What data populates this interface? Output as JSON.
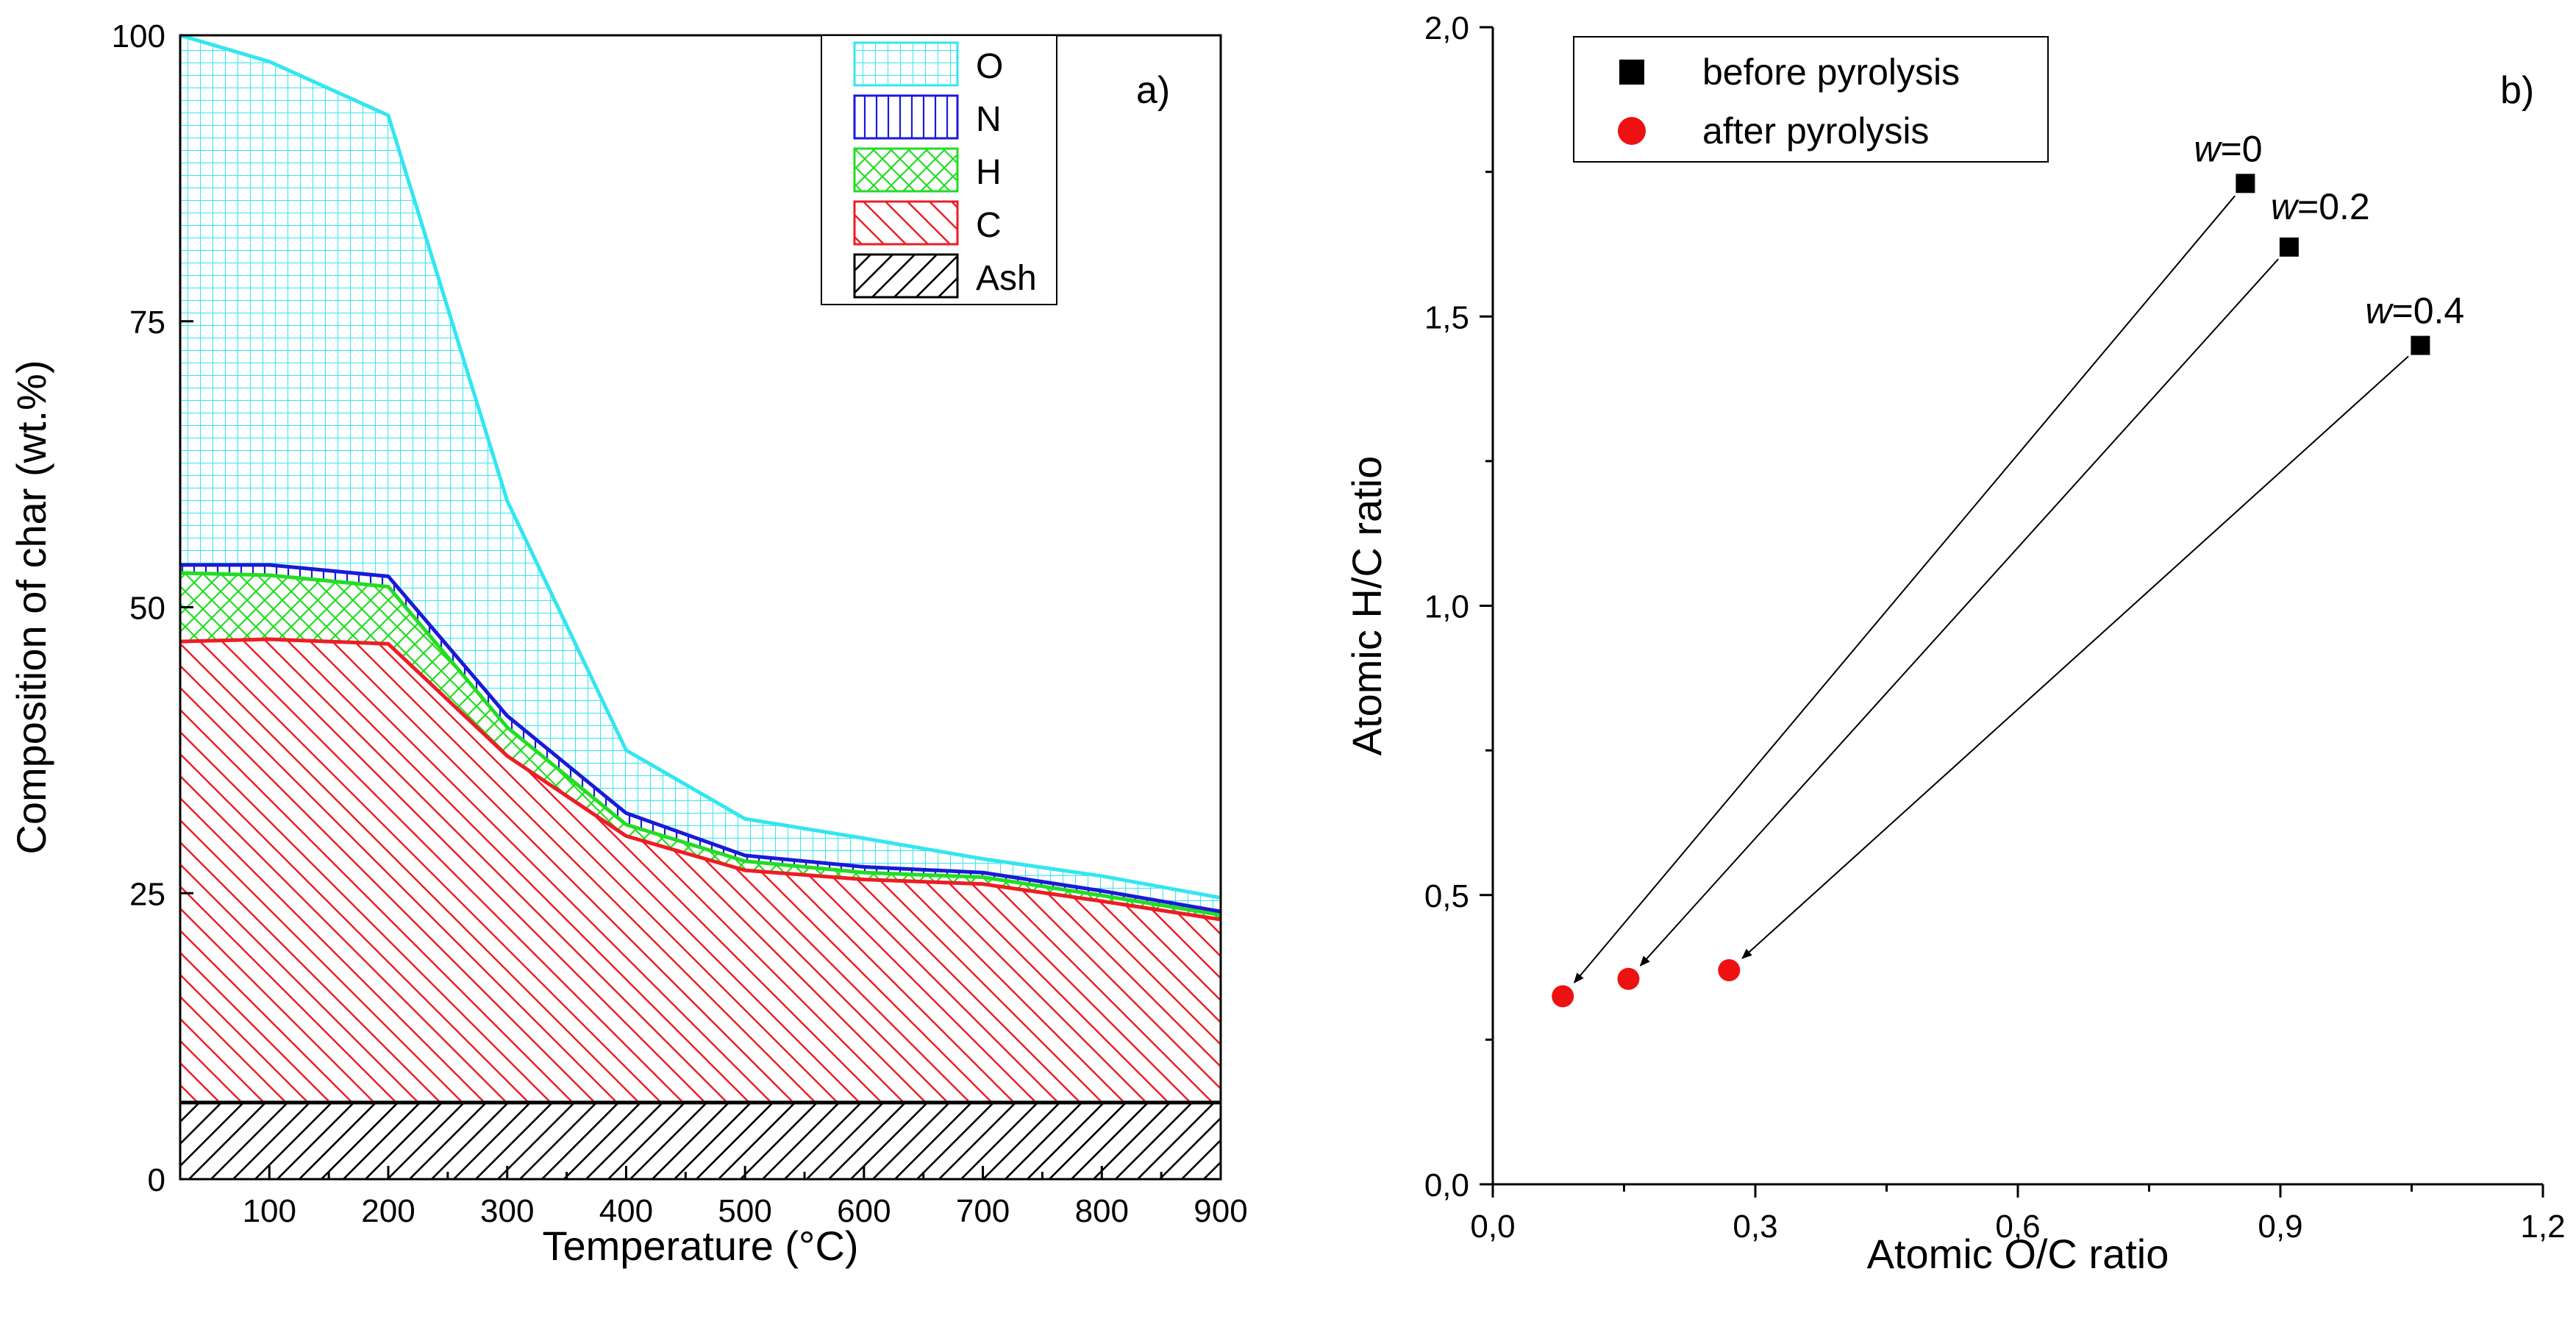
{
  "chart_data": [
    {
      "id": "a",
      "type": "area",
      "panel_label": "a)",
      "xlabel": "Temperature (°C)",
      "ylabel": "Composition of char (wt.%)",
      "xlim": [
        25,
        900
      ],
      "ylim": [
        0,
        100
      ],
      "xticks": [
        "100",
        "200",
        "300",
        "400",
        "500",
        "600",
        "700",
        "800",
        "900"
      ],
      "yticks": [
        "0",
        "25",
        "50",
        "75",
        "100"
      ],
      "x": [
        25,
        100,
        200,
        300,
        400,
        500,
        600,
        700,
        800,
        900
      ],
      "series": [
        {
          "name": "Ash",
          "color": "#000000",
          "hatch": "diag-black",
          "top": [
            6.7,
            6.7,
            6.7,
            6.7,
            6.7,
            6.7,
            6.7,
            6.7,
            6.7,
            6.7
          ]
        },
        {
          "name": "C",
          "color": "#ee1c25",
          "hatch": "diag-red",
          "top": [
            47,
            47.2,
            46.8,
            37,
            30,
            27,
            26.2,
            25.8,
            24.3,
            22.7
          ]
        },
        {
          "name": "H",
          "color": "#22dd22",
          "hatch": "cross-green",
          "top": [
            53,
            52.8,
            51.8,
            39.5,
            31,
            27.8,
            26.8,
            26.4,
            24.8,
            23.1
          ]
        },
        {
          "name": "N",
          "color": "#1a1ad8",
          "hatch": "vert-blue",
          "top": [
            53.7,
            53.7,
            52.7,
            40.5,
            32,
            28.3,
            27.3,
            26.8,
            25.2,
            23.4
          ]
        },
        {
          "name": "O",
          "color": "#33e6f0",
          "hatch": "grid-cyan",
          "top": [
            100,
            97.7,
            93,
            59.3,
            37.5,
            31.5,
            29.8,
            28,
            26.5,
            24.6
          ]
        }
      ],
      "legend": {
        "position": "top-right",
        "entries": [
          "O",
          "N",
          "H",
          "C",
          "Ash"
        ]
      }
    },
    {
      "id": "b",
      "type": "scatter",
      "panel_label": "b)",
      "xlabel": "Atomic O/C ratio",
      "ylabel": "Atomic H/C ratio",
      "xlim": [
        0,
        1.2
      ],
      "ylim": [
        0,
        2.0
      ],
      "xticks": [
        "0,0",
        "0,3",
        "0,6",
        "0,9",
        "1,2"
      ],
      "yticks": [
        "0,0",
        "0,5",
        "1,0",
        "1,5",
        "2,0"
      ],
      "series": [
        {
          "name": "before pyrolysis",
          "marker": "square",
          "color": "#000000",
          "points": [
            {
              "x": 0.86,
              "y": 1.73
            },
            {
              "x": 0.91,
              "y": 1.62
            },
            {
              "x": 1.06,
              "y": 1.45
            }
          ]
        },
        {
          "name": "after pyrolysis",
          "marker": "circle",
          "color": "#ee1111",
          "points": [
            {
              "x": 0.08,
              "y": 0.325
            },
            {
              "x": 0.155,
              "y": 0.355
            },
            {
              "x": 0.27,
              "y": 0.37
            }
          ]
        }
      ],
      "annotations": [
        {
          "italic": "w",
          "text": "=0"
        },
        {
          "italic": "w",
          "text": "=0.2"
        },
        {
          "italic": "w",
          "text": "=0.4"
        }
      ],
      "arrows": [
        {
          "from": {
            "x": 0.86,
            "y": 1.73
          },
          "to": {
            "x": 0.08,
            "y": 0.325
          }
        },
        {
          "from": {
            "x": 0.91,
            "y": 1.62
          },
          "to": {
            "x": 0.155,
            "y": 0.355
          }
        },
        {
          "from": {
            "x": 1.06,
            "y": 1.45
          },
          "to": {
            "x": 0.27,
            "y": 0.37
          }
        }
      ],
      "legend": {
        "position": "top-left",
        "entries": [
          "before pyrolysis",
          "after pyrolysis"
        ]
      }
    }
  ]
}
